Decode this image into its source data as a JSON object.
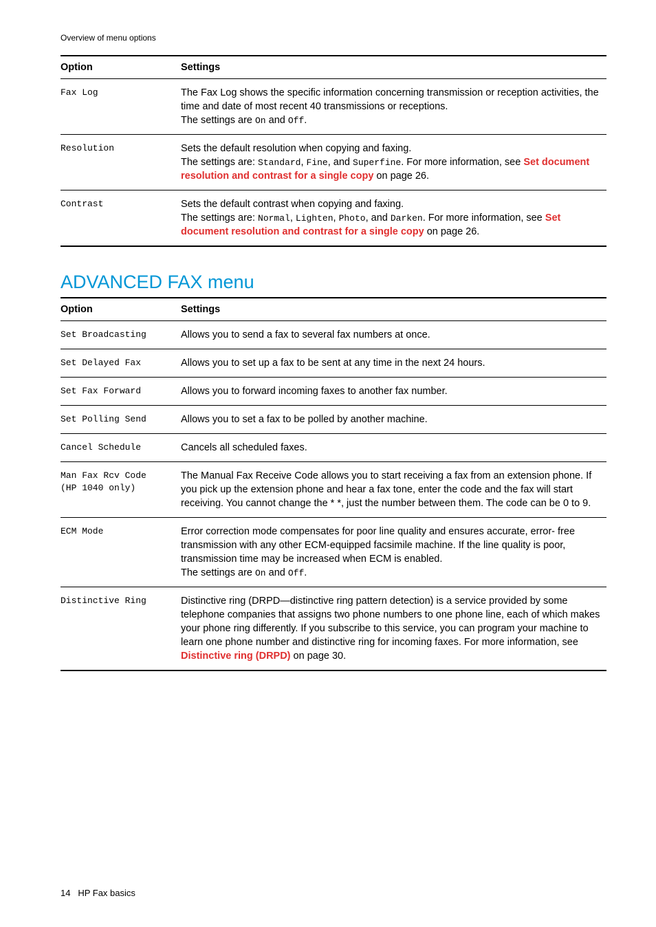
{
  "page": {
    "header": "Overview of menu options",
    "footer_page": "14",
    "footer_title": "HP Fax basics"
  },
  "table1": {
    "header_option": "Option",
    "header_settings": "Settings",
    "rows": [
      {
        "option": "Fax Log",
        "line1": "The Fax Log shows the specific information concerning transmission or reception activities, the time and date of most recent 40 transmissions or receptions.",
        "line2_pre": "The settings are ",
        "line2_m1": "On",
        "line2_mid": " and ",
        "line2_m2": "Off",
        "line2_post": "."
      },
      {
        "option": "Resolution",
        "line1": "Sets the default resolution when copying and faxing.",
        "line2_pre": "The settings are: ",
        "line2_m1": "Standard",
        "line2_sep1": ", ",
        "line2_m2": "Fine",
        "line2_sep2": ", and ",
        "line2_m3": "Superfine",
        "line2_post1": ". For more information, see ",
        "link": "Set document resolution and contrast for a single copy",
        "line2_post2": " on page 26."
      },
      {
        "option": "Contrast",
        "line1": "Sets the default contrast when copying and faxing.",
        "line2_pre": "The settings are: ",
        "line2_m1": "Normal",
        "line2_sep1": ", ",
        "line2_m2": "Lighten",
        "line2_sep2": ", ",
        "line2_m3": "Photo",
        "line2_sep3": ", and ",
        "line2_m4": "Darken",
        "line2_post1": ". For more information, see ",
        "link": "Set document resolution and contrast for a single copy",
        "line2_post2": " on page 26."
      }
    ]
  },
  "section2_title": "ADVANCED FAX menu",
  "table2": {
    "header_option": "Option",
    "header_settings": "Settings",
    "rows": [
      {
        "option": "Set Broadcasting",
        "text": "Allows you to send a fax to several fax numbers at once."
      },
      {
        "option": "Set Delayed Fax",
        "text": "Allows you to set up a fax to be sent at any time in the next 24 hours."
      },
      {
        "option": "Set Fax Forward",
        "text": "Allows you to forward incoming faxes to another fax number."
      },
      {
        "option": "Set Polling Send",
        "text": "Allows you to set a fax to be polled by another machine."
      },
      {
        "option": "Cancel Schedule",
        "text": "Cancels all scheduled faxes."
      },
      {
        "option_l1": "Man Fax Rcv Code",
        "option_l2": "(HP 1040 only)",
        "text": "The Manual Fax Receive Code allows you to start receiving a fax from an extension phone. If you pick up the extension phone and hear a fax tone, enter the code and the fax will start receiving. You cannot change the * *, just the number between them. The code can be 0 to 9."
      },
      {
        "option": "ECM Mode",
        "line1": "Error correction mode compensates for poor line quality and ensures accurate, error- free transmission with any other ECM-equipped facsimile machine. If the line quality is poor, transmission time may be increased when ECM is enabled.",
        "line2_pre": "The settings are ",
        "line2_m1": "On",
        "line2_mid": " and ",
        "line2_m2": "Off",
        "line2_post": "."
      },
      {
        "option": "Distinctive Ring",
        "text_pre": "Distinctive ring (DRPD—distinctive ring pattern detection) is a service provided by some telephone companies that assigns two phone numbers to one phone line, each of which makes your phone ring differently. If you subscribe to this service, you can program your machine to learn one phone number and distinctive ring for incoming faxes. For more information, see ",
        "link": "Distinctive ring (DRPD)",
        "text_post": " on page 30."
      }
    ]
  }
}
